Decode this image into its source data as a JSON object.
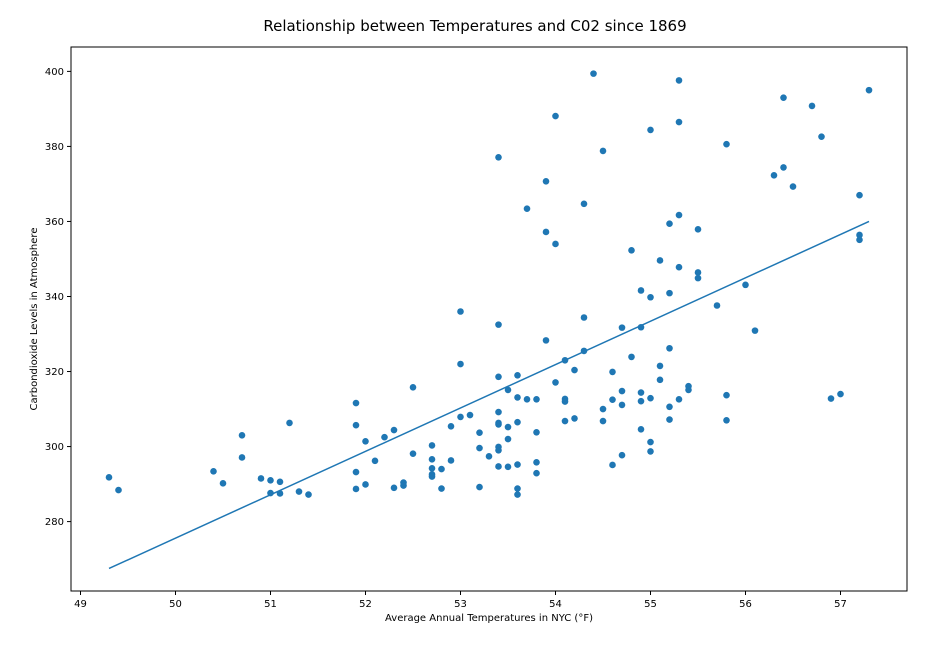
{
  "chart_data": {
    "type": "scatter",
    "title": "Relationship between Temperatures and C02 since 1869",
    "xlabel": "Average Annual Temperatures in NYC (°F)",
    "ylabel": "Carbondioxide Levels in Atmosphere",
    "xlim": [
      48.9,
      57.7
    ],
    "ylim": [
      261.5,
      406.5
    ],
    "xticks": [
      49,
      50,
      51,
      52,
      53,
      54,
      55,
      56,
      57
    ],
    "yticks": [
      280,
      300,
      320,
      340,
      360,
      380,
      400
    ],
    "grid": false,
    "marker_color": "#1f77b4",
    "line_color": "#1f77b4",
    "fit_line": {
      "x": [
        49.3,
        57.3
      ],
      "y": [
        267.5,
        360.0
      ]
    },
    "points": [
      [
        49.3,
        291.8
      ],
      [
        49.4,
        288.4
      ],
      [
        50.4,
        293.4
      ],
      [
        50.5,
        290.2
      ],
      [
        50.7,
        303.0
      ],
      [
        50.7,
        297.1
      ],
      [
        50.9,
        291.5
      ],
      [
        51.0,
        291.0
      ],
      [
        51.0,
        287.6
      ],
      [
        51.1,
        290.6
      ],
      [
        51.1,
        287.5
      ],
      [
        51.2,
        306.3
      ],
      [
        51.3,
        288.0
      ],
      [
        51.4,
        287.2
      ],
      [
        51.9,
        311.6
      ],
      [
        51.9,
        305.7
      ],
      [
        51.9,
        293.2
      ],
      [
        51.9,
        288.7
      ],
      [
        52.0,
        301.4
      ],
      [
        52.0,
        289.9
      ],
      [
        52.1,
        296.2
      ],
      [
        52.2,
        302.5
      ],
      [
        52.3,
        304.4
      ],
      [
        52.3,
        289.0
      ],
      [
        52.4,
        290.4
      ],
      [
        52.4,
        289.6
      ],
      [
        52.5,
        315.8
      ],
      [
        52.5,
        298.1
      ],
      [
        52.7,
        300.3
      ],
      [
        52.7,
        296.6
      ],
      [
        52.7,
        294.2
      ],
      [
        52.7,
        292.6
      ],
      [
        52.7,
        292.0
      ],
      [
        52.8,
        294.0
      ],
      [
        52.8,
        288.8
      ],
      [
        52.9,
        305.4
      ],
      [
        52.9,
        296.3
      ],
      [
        53.0,
        336.0
      ],
      [
        53.0,
        322.0
      ],
      [
        53.0,
        307.9
      ],
      [
        53.1,
        308.4
      ],
      [
        53.2,
        303.7
      ],
      [
        53.2,
        299.6
      ],
      [
        53.2,
        289.2
      ],
      [
        53.3,
        297.4
      ],
      [
        53.4,
        377.1
      ],
      [
        53.4,
        332.5
      ],
      [
        53.4,
        318.6
      ],
      [
        53.4,
        309.2
      ],
      [
        53.4,
        306.3
      ],
      [
        53.4,
        305.9
      ],
      [
        53.4,
        299.9
      ],
      [
        53.4,
        299.0
      ],
      [
        53.4,
        294.7
      ],
      [
        53.5,
        315.1
      ],
      [
        53.5,
        305.2
      ],
      [
        53.5,
        302.0
      ],
      [
        53.5,
        294.6
      ],
      [
        53.6,
        319.0
      ],
      [
        53.6,
        313.1
      ],
      [
        53.6,
        306.5
      ],
      [
        53.6,
        295.2
      ],
      [
        53.6,
        288.8
      ],
      [
        53.6,
        287.2
      ],
      [
        53.7,
        363.4
      ],
      [
        53.7,
        312.6
      ],
      [
        53.8,
        312.6
      ],
      [
        53.8,
        303.8
      ],
      [
        53.8,
        295.8
      ],
      [
        53.8,
        292.9
      ],
      [
        53.9,
        370.7
      ],
      [
        53.9,
        357.2
      ],
      [
        53.9,
        328.3
      ],
      [
        54.0,
        388.1
      ],
      [
        54.0,
        354.0
      ],
      [
        54.0,
        317.1
      ],
      [
        54.1,
        323.0
      ],
      [
        54.1,
        312.7
      ],
      [
        54.1,
        312.0
      ],
      [
        54.1,
        306.8
      ],
      [
        54.2,
        320.4
      ],
      [
        54.2,
        307.5
      ],
      [
        54.3,
        364.7
      ],
      [
        54.3,
        334.4
      ],
      [
        54.3,
        325.5
      ],
      [
        54.4,
        399.4
      ],
      [
        54.5,
        378.8
      ],
      [
        54.5,
        310.0
      ],
      [
        54.5,
        306.8
      ],
      [
        54.6,
        319.9
      ],
      [
        54.6,
        312.5
      ],
      [
        54.6,
        295.1
      ],
      [
        54.7,
        331.7
      ],
      [
        54.7,
        314.8
      ],
      [
        54.7,
        311.1
      ],
      [
        54.7,
        297.7
      ],
      [
        54.8,
        352.3
      ],
      [
        54.8,
        323.9
      ],
      [
        54.9,
        341.6
      ],
      [
        54.9,
        331.8
      ],
      [
        54.9,
        314.4
      ],
      [
        54.9,
        312.1
      ],
      [
        54.9,
        304.6
      ],
      [
        55.0,
        384.4
      ],
      [
        55.0,
        339.8
      ],
      [
        55.0,
        312.9
      ],
      [
        55.0,
        301.2
      ],
      [
        55.0,
        298.7
      ],
      [
        55.1,
        349.6
      ],
      [
        55.1,
        321.5
      ],
      [
        55.1,
        317.8
      ],
      [
        55.2,
        359.4
      ],
      [
        55.2,
        340.9
      ],
      [
        55.2,
        326.2
      ],
      [
        55.2,
        310.6
      ],
      [
        55.2,
        307.2
      ],
      [
        55.3,
        397.6
      ],
      [
        55.3,
        386.5
      ],
      [
        55.3,
        361.7
      ],
      [
        55.3,
        347.8
      ],
      [
        55.3,
        312.6
      ],
      [
        55.4,
        316.1
      ],
      [
        55.4,
        315.1
      ],
      [
        55.5,
        357.9
      ],
      [
        55.5,
        346.4
      ],
      [
        55.5,
        344.9
      ],
      [
        55.7,
        337.6
      ],
      [
        55.8,
        380.6
      ],
      [
        55.8,
        313.7
      ],
      [
        55.8,
        307.0
      ],
      [
        56.0,
        343.1
      ],
      [
        56.1,
        330.9
      ],
      [
        56.3,
        372.3
      ],
      [
        56.4,
        393.0
      ],
      [
        56.4,
        374.4
      ],
      [
        56.5,
        369.3
      ],
      [
        56.7,
        390.8
      ],
      [
        56.8,
        382.6
      ],
      [
        56.9,
        312.8
      ],
      [
        57.0,
        314.0
      ],
      [
        57.2,
        367.0
      ],
      [
        57.2,
        356.4
      ],
      [
        57.2,
        355.1
      ],
      [
        57.3,
        395.0
      ]
    ]
  }
}
